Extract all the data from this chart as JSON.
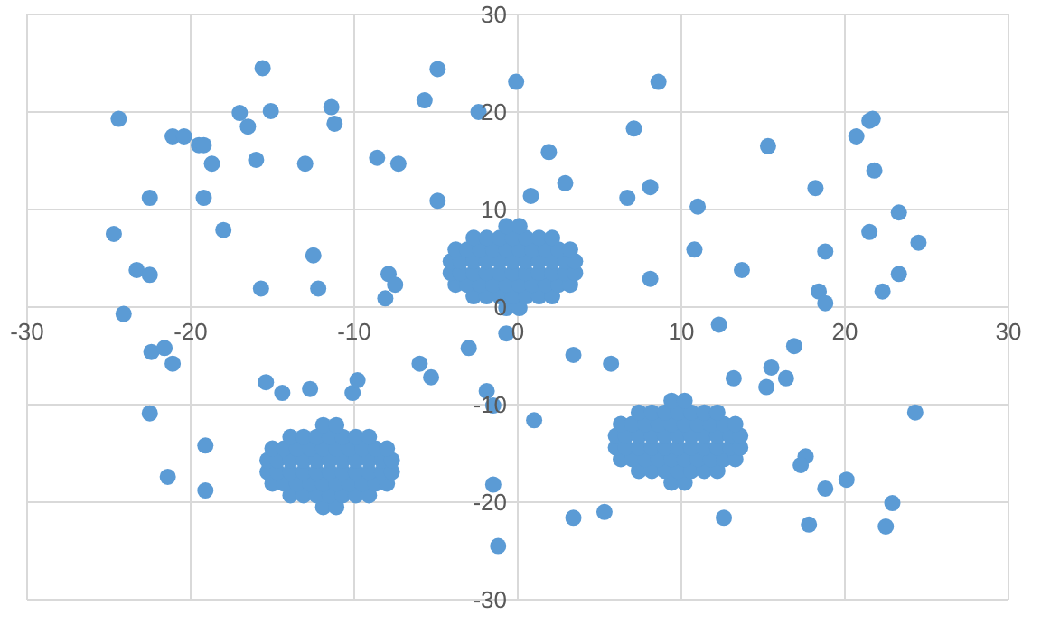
{
  "chart_data": {
    "type": "scatter",
    "xlim": [
      -30,
      30
    ],
    "ylim": [
      -30,
      30
    ],
    "xticks": [
      -30,
      -20,
      -10,
      0,
      10,
      20,
      30
    ],
    "yticks": [
      -30,
      -20,
      -10,
      0,
      10,
      20,
      30
    ],
    "grid": true,
    "marker": "circle",
    "series": [
      {
        "color": "#5b9bd5",
        "x": [
          -24.4,
          -21.1,
          -20.4,
          -19.5,
          -19.2,
          -18.7,
          -15.6,
          -17.0,
          -15.1,
          -16.5,
          -16.0,
          -13.0,
          -11.4,
          -11.2,
          -8.6,
          -7.3,
          -5.7,
          -4.9,
          -0.1,
          -22.5,
          -19.2,
          -4.9,
          -24.7,
          -18.0,
          -23.3,
          -22.5,
          -12.5,
          -15.7,
          -12.2,
          -7.9,
          -7.5,
          -8.1,
          -24.1,
          -2.4,
          8.6,
          7.1,
          1.9,
          2.9,
          0.8,
          6.7,
          8.1,
          11.0,
          15.3,
          21.5,
          21.7,
          20.7,
          21.8,
          18.2,
          23.3,
          21.5,
          24.5,
          10.8,
          18.8,
          13.7,
          8.1,
          23.3,
          22.3,
          18.4,
          18.8,
          -22.4,
          -21.6,
          -21.1,
          -22.5,
          -19.1,
          -21.4,
          -19.1,
          -15.4,
          -14.4,
          -12.7,
          -10.1,
          -9.8,
          -6.0,
          -5.3,
          -3.0,
          -1.9,
          -1.5,
          -0.7,
          -1.5,
          -1.2,
          12.3,
          3.4,
          5.7,
          16.9,
          15.5,
          16.4,
          13.2,
          15.2,
          1.0,
          24.3,
          17.6,
          17.3,
          18.8,
          20.1,
          22.9,
          22.5,
          17.8,
          3.4,
          5.3,
          12.6
        ],
        "values": [
          19.3,
          17.5,
          17.5,
          16.6,
          16.6,
          14.7,
          24.5,
          19.9,
          20.1,
          18.5,
          15.1,
          14.7,
          20.5,
          18.8,
          15.3,
          14.7,
          21.2,
          24.4,
          23.1,
          11.2,
          11.2,
          10.9,
          7.5,
          7.9,
          3.8,
          3.3,
          5.3,
          1.9,
          1.9,
          3.4,
          2.3,
          0.9,
          -0.7,
          20.0,
          23.1,
          18.3,
          15.9,
          12.7,
          11.4,
          11.2,
          12.3,
          10.3,
          16.5,
          19.1,
          19.3,
          17.5,
          14.0,
          12.2,
          9.7,
          7.7,
          6.6,
          5.9,
          5.7,
          3.8,
          2.9,
          3.4,
          1.6,
          1.6,
          0.4,
          -4.6,
          -4.2,
          -5.8,
          -10.9,
          -14.2,
          -17.4,
          -18.8,
          -7.7,
          -8.8,
          -8.4,
          -8.8,
          -7.5,
          -5.8,
          -7.2,
          -4.2,
          -8.6,
          -10.1,
          -2.7,
          -18.2,
          -24.5,
          -1.8,
          -4.9,
          -5.8,
          -4.0,
          -6.2,
          -7.3,
          -7.3,
          -8.2,
          -11.6,
          -10.8,
          -15.3,
          -16.2,
          -18.6,
          -17.7,
          -20.1,
          -22.5,
          -22.3,
          -21.6,
          -21.0,
          -21.6
        ]
      },
      {
        "color": "#5b9bd5",
        "x": [
          -0.7,
          0.1,
          -2.7,
          -1.9,
          -1.1,
          -0.3,
          0.5,
          1.3,
          2.1,
          -3.8,
          -3.1,
          -2.3,
          -1.5,
          -0.7,
          0.1,
          0.9,
          1.7,
          2.5,
          3.2,
          -4.1,
          -3.5,
          -2.7,
          -1.9,
          -1.1,
          -0.3,
          0.5,
          1.3,
          2.1,
          2.9,
          3.5,
          -4.1,
          -3.5,
          -2.7,
          -1.9,
          -1.1,
          -0.3,
          0.5,
          1.3,
          2.1,
          2.9,
          3.5,
          -3.8,
          -3.1,
          -2.3,
          -1.5,
          -0.7,
          0.1,
          0.9,
          1.7,
          2.5,
          3.2,
          -2.7,
          -1.9,
          -1.1,
          -0.3,
          0.5,
          1.3,
          2.1,
          -0.7,
          0.1
        ],
        "values": [
          -0.1,
          -0.1,
          1.1,
          1.1,
          1.1,
          1.1,
          1.1,
          1.1,
          1.1,
          2.3,
          2.3,
          2.3,
          2.3,
          2.3,
          2.3,
          2.3,
          2.3,
          2.3,
          2.3,
          3.5,
          3.5,
          3.5,
          3.5,
          3.5,
          3.5,
          3.5,
          3.5,
          3.5,
          3.5,
          3.5,
          4.7,
          4.7,
          4.7,
          4.7,
          4.7,
          4.7,
          4.7,
          4.7,
          4.7,
          4.7,
          4.7,
          5.9,
          5.9,
          5.9,
          5.9,
          5.9,
          5.9,
          5.9,
          5.9,
          5.9,
          5.9,
          7.1,
          7.1,
          7.1,
          7.1,
          7.1,
          7.1,
          7.1,
          8.3,
          8.3
        ]
      },
      {
        "color": "#5b9bd5",
        "x": [
          -11.9,
          -11.1,
          -13.9,
          -13.1,
          -12.3,
          -11.5,
          -10.7,
          -9.9,
          -9.1,
          -15.0,
          -14.3,
          -13.5,
          -12.7,
          -11.9,
          -11.1,
          -10.3,
          -9.5,
          -8.7,
          -8.0,
          -15.3,
          -14.7,
          -13.9,
          -13.1,
          -12.3,
          -11.5,
          -10.7,
          -9.9,
          -9.1,
          -8.3,
          -7.7,
          -15.3,
          -14.7,
          -13.9,
          -13.1,
          -12.3,
          -11.5,
          -10.7,
          -9.9,
          -9.1,
          -8.3,
          -7.7,
          -15.0,
          -14.3,
          -13.5,
          -12.7,
          -11.9,
          -11.1,
          -10.3,
          -9.5,
          -8.7,
          -8.0,
          -13.9,
          -13.1,
          -12.3,
          -11.5,
          -10.7,
          -9.9,
          -9.1,
          -11.9,
          -11.1
        ],
        "values": [
          -20.5,
          -20.5,
          -19.3,
          -19.3,
          -19.3,
          -19.3,
          -19.3,
          -19.3,
          -19.3,
          -18.1,
          -18.1,
          -18.1,
          -18.1,
          -18.1,
          -18.1,
          -18.1,
          -18.1,
          -18.1,
          -18.1,
          -16.9,
          -16.9,
          -16.9,
          -16.9,
          -16.9,
          -16.9,
          -16.9,
          -16.9,
          -16.9,
          -16.9,
          -16.9,
          -15.7,
          -15.7,
          -15.7,
          -15.7,
          -15.7,
          -15.7,
          -15.7,
          -15.7,
          -15.7,
          -15.7,
          -15.7,
          -14.5,
          -14.5,
          -14.5,
          -14.5,
          -14.5,
          -14.5,
          -14.5,
          -14.5,
          -14.5,
          -14.5,
          -13.3,
          -13.3,
          -13.3,
          -13.3,
          -13.3,
          -13.3,
          -13.3,
          -12.1,
          -12.1
        ]
      },
      {
        "color": "#5b9bd5",
        "x": [
          9.4,
          10.2,
          7.4,
          8.2,
          9.0,
          9.8,
          10.6,
          11.4,
          12.2,
          6.3,
          7.0,
          7.8,
          8.6,
          9.4,
          10.2,
          11.0,
          11.8,
          12.6,
          13.3,
          6.0,
          6.6,
          7.4,
          8.2,
          9.0,
          9.8,
          10.6,
          11.4,
          12.2,
          13.0,
          13.6,
          6.0,
          6.6,
          7.4,
          8.2,
          9.0,
          9.8,
          10.6,
          11.4,
          12.2,
          13.0,
          13.6,
          6.3,
          7.0,
          7.8,
          8.6,
          9.4,
          10.2,
          11.0,
          11.8,
          12.6,
          13.3,
          7.4,
          8.2,
          9.0,
          9.8,
          10.6,
          11.4,
          12.2,
          9.4,
          10.2
        ],
        "values": [
          -18.0,
          -18.0,
          -16.8,
          -16.8,
          -16.8,
          -16.8,
          -16.8,
          -16.8,
          -16.8,
          -15.6,
          -15.6,
          -15.6,
          -15.6,
          -15.6,
          -15.6,
          -15.6,
          -15.6,
          -15.6,
          -15.6,
          -14.4,
          -14.4,
          -14.4,
          -14.4,
          -14.4,
          -14.4,
          -14.4,
          -14.4,
          -14.4,
          -14.4,
          -14.4,
          -13.2,
          -13.2,
          -13.2,
          -13.2,
          -13.2,
          -13.2,
          -13.2,
          -13.2,
          -13.2,
          -13.2,
          -13.2,
          -12.0,
          -12.0,
          -12.0,
          -12.0,
          -12.0,
          -12.0,
          -12.0,
          -12.0,
          -12.0,
          -12.0,
          -10.8,
          -10.8,
          -10.8,
          -10.8,
          -10.8,
          -10.8,
          -10.8,
          -9.6,
          -9.6
        ]
      }
    ]
  }
}
